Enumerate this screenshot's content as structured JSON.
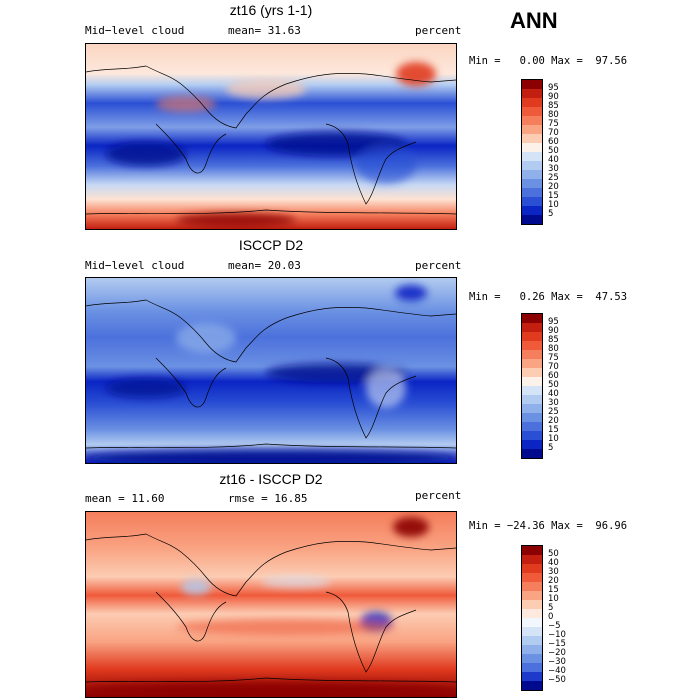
{
  "season": "ANN",
  "panels": [
    {
      "title": "zt16 (yrs 1-1)",
      "left_text": "Mid−level cloud",
      "center_text": "mean=  31.63",
      "units": "percent",
      "minmax": "Min =   0.00 Max =  97.56",
      "colorbar_labels": [
        "95",
        "90",
        "85",
        "80",
        "75",
        "70",
        "60",
        "50",
        "40",
        "30",
        "25",
        "20",
        "15",
        "10",
        "5"
      ],
      "colorbar_colors": [
        "#8b0000",
        "#c21f10",
        "#e03a1f",
        "#ef5a3a",
        "#f57e5c",
        "#f9a483",
        "#fcccb3",
        "#fdf2ea",
        "#d5e3f7",
        "#b2cbf0",
        "#8fb0ea",
        "#6b91e3",
        "#4c71dc",
        "#2a4fd4",
        "#0a25c4",
        "#000a8e"
      ]
    },
    {
      "title": "ISCCP D2",
      "left_text": "Mid−level cloud",
      "center_text": "mean=  20.03",
      "units": "percent",
      "minmax": "Min =   0.26 Max =  47.53",
      "colorbar_labels": [
        "95",
        "90",
        "85",
        "80",
        "75",
        "70",
        "60",
        "50",
        "40",
        "30",
        "25",
        "20",
        "15",
        "10",
        "5"
      ],
      "colorbar_colors": [
        "#8b0000",
        "#c21f10",
        "#e03a1f",
        "#ef5a3a",
        "#f57e5c",
        "#f9a483",
        "#fcccb3",
        "#fdf2ea",
        "#d5e3f7",
        "#b2cbf0",
        "#8fb0ea",
        "#6b91e3",
        "#4c71dc",
        "#2a4fd4",
        "#0a25c4",
        "#000a8e"
      ]
    },
    {
      "title": "zt16 - ISCCP D2",
      "left_text": "mean =  11.60",
      "center_text": "rmse =  16.85",
      "units": "percent",
      "minmax": "Min = −24.36 Max =  96.96",
      "colorbar_labels": [
        "50",
        "40",
        "30",
        "20",
        "15",
        "10",
        "5",
        "0",
        "−5",
        "−10",
        "−15",
        "−20",
        "−30",
        "−40",
        "−50"
      ],
      "colorbar_colors": [
        "#8b0000",
        "#c21f10",
        "#e03a1f",
        "#ef5a3a",
        "#f57e5c",
        "#f9a483",
        "#fcccb3",
        "#fde9de",
        "#f2f6fd",
        "#d5e3f7",
        "#b2cbf0",
        "#8fb0ea",
        "#6b91e3",
        "#4c71dc",
        "#1d3acb",
        "#000a8e"
      ]
    }
  ]
}
